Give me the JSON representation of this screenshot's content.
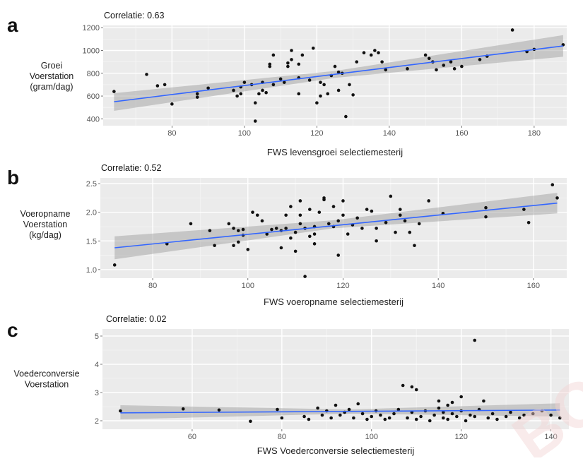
{
  "chart_data": [
    {
      "type": "scatter",
      "panel": "a",
      "annotation": "Correlatie: 0.63",
      "xlabel": "FWS levensgroei selectiemesterij",
      "ylabel": [
        "Groei",
        "Voerstation",
        "(gram/dag)"
      ],
      "xlim": [
        61,
        189
      ],
      "ylim": [
        340,
        1220
      ],
      "xticks": [
        60,
        80,
        100,
        120,
        140,
        160,
        180
      ],
      "yticks": [
        400,
        600,
        800,
        1000,
        1200
      ],
      "grid": true,
      "trend": {
        "x": [
          64,
          188
        ],
        "y": [
          550,
          1040
        ],
        "ci_band": [
          [
            64,
            470,
            625
          ],
          [
            125,
            760,
            820
          ],
          [
            188,
            945,
            1135
          ]
        ],
        "color": "#3366ff"
      },
      "points": [
        [
          64,
          640
        ],
        [
          73,
          790
        ],
        [
          76,
          690
        ],
        [
          78,
          700
        ],
        [
          80,
          530
        ],
        [
          87,
          590
        ],
        [
          87,
          620
        ],
        [
          90,
          670
        ],
        [
          97,
          650
        ],
        [
          98,
          600
        ],
        [
          99,
          620
        ],
        [
          99,
          680
        ],
        [
          100,
          720
        ],
        [
          102,
          700
        ],
        [
          103,
          380
        ],
        [
          103,
          540
        ],
        [
          104,
          620
        ],
        [
          105,
          650
        ],
        [
          105,
          720
        ],
        [
          106,
          630
        ],
        [
          107,
          860
        ],
        [
          107,
          880
        ],
        [
          108,
          960
        ],
        [
          108,
          700
        ],
        [
          110,
          750
        ],
        [
          111,
          720
        ],
        [
          112,
          890
        ],
        [
          112,
          860
        ],
        [
          113,
          920
        ],
        [
          113,
          1000
        ],
        [
          115,
          880
        ],
        [
          115,
          760
        ],
        [
          115,
          620
        ],
        [
          116,
          960
        ],
        [
          118,
          740
        ],
        [
          119,
          1020
        ],
        [
          120,
          540
        ],
        [
          121,
          720
        ],
        [
          121,
          600
        ],
        [
          122,
          700
        ],
        [
          123,
          620
        ],
        [
          124,
          780
        ],
        [
          125,
          860
        ],
        [
          126,
          810
        ],
        [
          126,
          650
        ],
        [
          127,
          800
        ],
        [
          128,
          420
        ],
        [
          129,
          700
        ],
        [
          130,
          610
        ],
        [
          131,
          900
        ],
        [
          133,
          980
        ],
        [
          135,
          960
        ],
        [
          136,
          1000
        ],
        [
          137,
          980
        ],
        [
          138,
          900
        ],
        [
          139,
          830
        ],
        [
          145,
          840
        ],
        [
          150,
          960
        ],
        [
          151,
          930
        ],
        [
          152,
          900
        ],
        [
          153,
          830
        ],
        [
          155,
          870
        ],
        [
          157,
          900
        ],
        [
          158,
          840
        ],
        [
          160,
          860
        ],
        [
          165,
          920
        ],
        [
          167,
          950
        ],
        [
          174,
          1180
        ],
        [
          178,
          990
        ],
        [
          180,
          1010
        ],
        [
          188,
          1050
        ]
      ]
    },
    {
      "type": "scatter",
      "panel": "b",
      "annotation": "Correlatie: 0.52",
      "xlabel": "FWS voeropname selectiemesterij",
      "ylabel": [
        "Voeropname",
        "Voerstation",
        "(kg/dag)"
      ],
      "xlim": [
        69,
        167
      ],
      "ylim": [
        0.85,
        2.6
      ],
      "xticks": [
        80,
        100,
        120,
        140,
        160
      ],
      "yticks": [
        1.0,
        1.5,
        2.0,
        2.5
      ],
      "grid": true,
      "trend": {
        "x": [
          72,
          165
        ],
        "y": [
          1.38,
          2.16
        ],
        "ci_band": [
          [
            72,
            1.18,
            1.58
          ],
          [
            118,
            1.72,
            1.86
          ],
          [
            165,
            1.98,
            2.34
          ]
        ],
        "color": "#3366ff"
      },
      "points": [
        [
          72,
          1.08
        ],
        [
          83,
          1.45
        ],
        [
          88,
          1.8
        ],
        [
          92,
          1.68
        ],
        [
          93,
          1.42
        ],
        [
          96,
          1.8
        ],
        [
          97,
          1.42
        ],
        [
          97,
          1.72
        ],
        [
          98,
          1.48
        ],
        [
          98,
          1.68
        ],
        [
          99,
          1.7
        ],
        [
          99,
          1.6
        ],
        [
          100,
          1.35
        ],
        [
          101,
          2.0
        ],
        [
          102,
          1.95
        ],
        [
          103,
          1.85
        ],
        [
          104,
          1.62
        ],
        [
          105,
          1.7
        ],
        [
          106,
          1.72
        ],
        [
          107,
          1.68
        ],
        [
          107,
          1.38
        ],
        [
          108,
          1.72
        ],
        [
          108,
          1.95
        ],
        [
          109,
          2.1
        ],
        [
          109,
          1.55
        ],
        [
          110,
          1.65
        ],
        [
          110,
          1.32
        ],
        [
          111,
          1.8
        ],
        [
          111,
          1.95
        ],
        [
          111,
          2.2
        ],
        [
          112,
          0.88
        ],
        [
          112,
          1.72
        ],
        [
          113,
          1.58
        ],
        [
          113,
          2.05
        ],
        [
          114,
          1.45
        ],
        [
          114,
          1.75
        ],
        [
          114,
          1.62
        ],
        [
          115,
          2.0
        ],
        [
          116,
          2.22
        ],
        [
          116,
          2.25
        ],
        [
          117,
          1.8
        ],
        [
          118,
          2.1
        ],
        [
          118,
          1.75
        ],
        [
          119,
          1.25
        ],
        [
          119,
          1.85
        ],
        [
          120,
          1.95
        ],
        [
          120,
          2.2
        ],
        [
          121,
          1.62
        ],
        [
          122,
          1.78
        ],
        [
          123,
          1.9
        ],
        [
          124,
          1.72
        ],
        [
          125,
          2.05
        ],
        [
          126,
          2.02
        ],
        [
          127,
          1.5
        ],
        [
          127,
          1.72
        ],
        [
          129,
          1.82
        ],
        [
          130,
          2.28
        ],
        [
          131,
          1.65
        ],
        [
          132,
          2.05
        ],
        [
          132,
          1.95
        ],
        [
          133,
          1.85
        ],
        [
          134,
          1.65
        ],
        [
          135,
          1.42
        ],
        [
          136,
          1.8
        ],
        [
          138,
          2.2
        ],
        [
          141,
          1.98
        ],
        [
          150,
          2.08
        ],
        [
          150,
          1.92
        ],
        [
          158,
          2.05
        ],
        [
          159,
          1.82
        ],
        [
          164,
          2.48
        ],
        [
          165,
          2.25
        ]
      ]
    },
    {
      "type": "scatter",
      "panel": "c",
      "annotation": "Correlatie: 0.02",
      "xlabel": "FWS Voederconversie selectiemesterij",
      "ylabel": [
        "Voederconversie",
        "Voerstation"
      ],
      "xlim": [
        40,
        144
      ],
      "ylim": [
        1.7,
        5.25
      ],
      "xticks": [
        60,
        80,
        100,
        120,
        140
      ],
      "yticks": [
        2,
        3,
        4,
        5
      ],
      "grid": true,
      "trend": {
        "x": [
          44,
          142
        ],
        "y": [
          2.28,
          2.38
        ],
        "ci_band": [
          [
            44,
            2.05,
            2.55
          ],
          [
            95,
            2.25,
            2.4
          ],
          [
            142,
            2.15,
            2.62
          ]
        ],
        "color": "#3366ff"
      },
      "points": [
        [
          44,
          2.35
        ],
        [
          58,
          2.42
        ],
        [
          66,
          2.38
        ],
        [
          73,
          1.98
        ],
        [
          79,
          2.4
        ],
        [
          80,
          2.1
        ],
        [
          85,
          2.15
        ],
        [
          86,
          2.05
        ],
        [
          88,
          2.45
        ],
        [
          89,
          2.2
        ],
        [
          90,
          2.35
        ],
        [
          91,
          2.1
        ],
        [
          92,
          2.55
        ],
        [
          93,
          2.2
        ],
        [
          94,
          2.3
        ],
        [
          95,
          2.4
        ],
        [
          96,
          2.1
        ],
        [
          97,
          2.6
        ],
        [
          98,
          2.25
        ],
        [
          99,
          2.05
        ],
        [
          100,
          2.15
        ],
        [
          101,
          2.35
        ],
        [
          102,
          2.2
        ],
        [
          103,
          2.05
        ],
        [
          104,
          2.1
        ],
        [
          105,
          2.25
        ],
        [
          106,
          2.4
        ],
        [
          107,
          3.25
        ],
        [
          108,
          2.1
        ],
        [
          109,
          3.2
        ],
        [
          109,
          2.3
        ],
        [
          110,
          3.1
        ],
        [
          110,
          2.05
        ],
        [
          111,
          2.15
        ],
        [
          112,
          2.35
        ],
        [
          113,
          2.0
        ],
        [
          114,
          2.2
        ],
        [
          115,
          2.45
        ],
        [
          115,
          2.7
        ],
        [
          116,
          2.1
        ],
        [
          116,
          2.3
        ],
        [
          117,
          2.05
        ],
        [
          117,
          2.55
        ],
        [
          118,
          2.65
        ],
        [
          118,
          2.25
        ],
        [
          119,
          2.15
        ],
        [
          120,
          2.85
        ],
        [
          120,
          2.35
        ],
        [
          121,
          2.0
        ],
        [
          122,
          2.2
        ],
        [
          123,
          4.85
        ],
        [
          123,
          2.15
        ],
        [
          124,
          2.4
        ],
        [
          125,
          2.7
        ],
        [
          126,
          2.1
        ],
        [
          127,
          2.25
        ],
        [
          128,
          2.05
        ],
        [
          130,
          2.15
        ],
        [
          131,
          2.3
        ],
        [
          133,
          2.1
        ],
        [
          134,
          2.2
        ],
        [
          136,
          2.25
        ],
        [
          138,
          2.35
        ],
        [
          140,
          2.2
        ],
        [
          142,
          2.1
        ]
      ]
    }
  ]
}
